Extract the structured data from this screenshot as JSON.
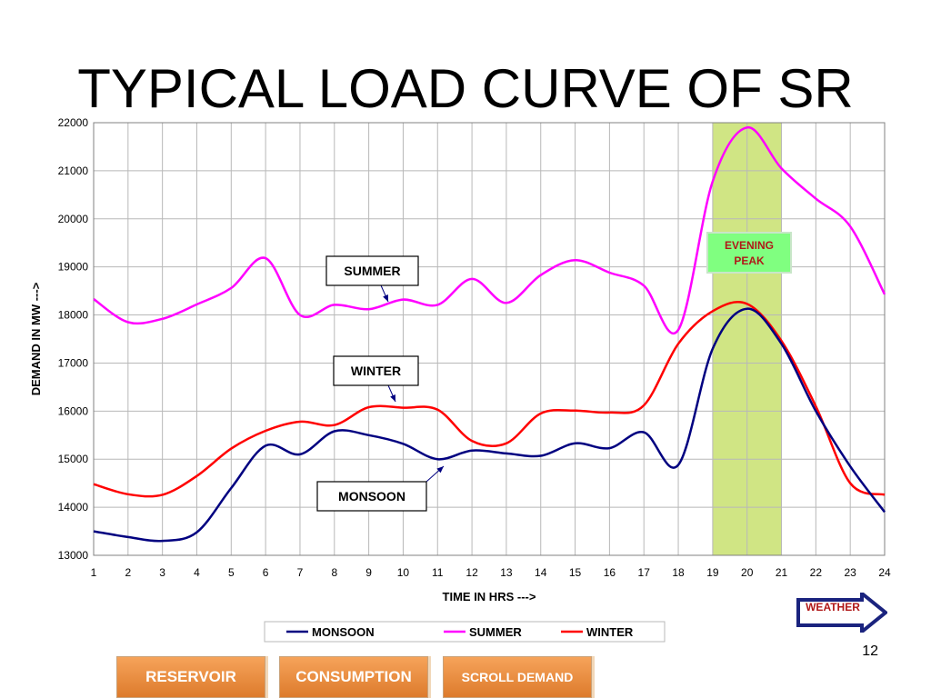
{
  "slide": {
    "title": "TYPICAL LOAD CURVE OF SR",
    "page_number": "12"
  },
  "nav": {
    "weather_label": "WEATHER",
    "buttons": [
      "RESERVOIR",
      "CONSUMPTION",
      "SCROLL DEMAND"
    ]
  },
  "colors": {
    "monsoon": "#000080",
    "summer": "#ff00ff",
    "winter": "#ff0000",
    "peak_band": "#c8e06e",
    "peak_label_bg": "#80ff80",
    "peak_label_text": "#b01818",
    "button": "#e8893c"
  },
  "chart_data": {
    "type": "line",
    "title": "",
    "xlabel": "TIME IN HRS --->",
    "ylabel": "DEMAND IN MW --->",
    "x": [
      1,
      2,
      3,
      4,
      5,
      6,
      7,
      8,
      9,
      10,
      11,
      12,
      13,
      14,
      15,
      16,
      17,
      18,
      19,
      20,
      21,
      22,
      23,
      24
    ],
    "xlim": [
      1,
      24
    ],
    "ylim": [
      13000,
      22000
    ],
    "yticks": [
      13000,
      14000,
      15000,
      16000,
      17000,
      18000,
      19000,
      20000,
      21000,
      22000
    ],
    "grid": true,
    "legend": "bottom",
    "series": [
      {
        "name": "MONSOON",
        "values": [
          13500,
          13380,
          13300,
          13480,
          14400,
          15280,
          15100,
          15580,
          15500,
          15320,
          15000,
          15180,
          15120,
          15070,
          15330,
          15230,
          15560,
          14880,
          17300,
          18130,
          17400,
          16000,
          14850,
          13900
        ]
      },
      {
        "name": "SUMMER",
        "values": [
          18330,
          17850,
          17920,
          18220,
          18560,
          19180,
          18000,
          18210,
          18120,
          18320,
          18210,
          18750,
          18250,
          18830,
          19140,
          18880,
          18610,
          17690,
          20780,
          21900,
          21050,
          20420,
          19840,
          18430
        ]
      },
      {
        "name": "WINTER",
        "values": [
          14480,
          14270,
          14260,
          14650,
          15220,
          15590,
          15780,
          15710,
          16080,
          16070,
          16030,
          15380,
          15330,
          15950,
          16010,
          15970,
          16120,
          17400,
          18080,
          18230,
          17460,
          16100,
          14500,
          14260
        ]
      }
    ],
    "highlight_band": {
      "x_from": 19,
      "x_to": 21,
      "label": "EVENING PEAK"
    },
    "annotations": [
      {
        "text": "SUMMER",
        "series": "SUMMER",
        "x": 10
      },
      {
        "text": "WINTER",
        "series": "WINTER",
        "x": 10
      },
      {
        "text": "MONSOON",
        "series": "MONSOON",
        "x": 11
      }
    ]
  }
}
